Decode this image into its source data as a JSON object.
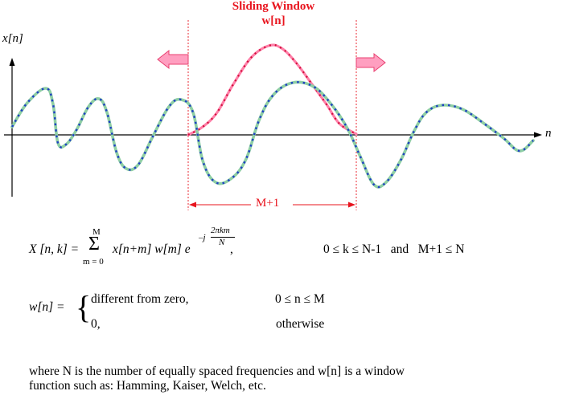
{
  "title": {
    "line1": "Sliding Window",
    "line2": "w[n]"
  },
  "axis": {
    "y_label": "x[n]",
    "x_label": "n"
  },
  "window_span_label": "M+1",
  "equation": {
    "lhs": "X [n, k] =",
    "sum_top": "M",
    "sum_symbol": "Σ",
    "sum_bottom": "m = 0",
    "body": "x[n+m] w[m] e",
    "exp_prefix": "–j",
    "exp_num": "2πkm",
    "exp_den": "N",
    "comma": ",",
    "condition": "0 ≤ k ≤ N-1   and   M+1 ≤ N"
  },
  "window_def": {
    "lhs": "w[n] =",
    "brace": "{",
    "case1_text": "different from zero,",
    "case1_cond": "0 ≤ n ≤ M",
    "case2_text": "0,",
    "case2_cond": "otherwise"
  },
  "note": {
    "line1": "where N is the number of equally spaced frequencies and w[n] is a window",
    "line2": "function such as: Hamming, Kaiser, Welch, etc."
  },
  "colors": {
    "title": "#e8141e",
    "signal_outer": "#8fcfa4",
    "signal_dots": "#1f3fc4",
    "window_curve": "#ff7fa8",
    "window_dots": "#d0103c",
    "arrow_fill": "#ff9fc0",
    "arrow_stroke": "#e84070",
    "dim_line": "#e8141e",
    "axis": "#000000"
  }
}
